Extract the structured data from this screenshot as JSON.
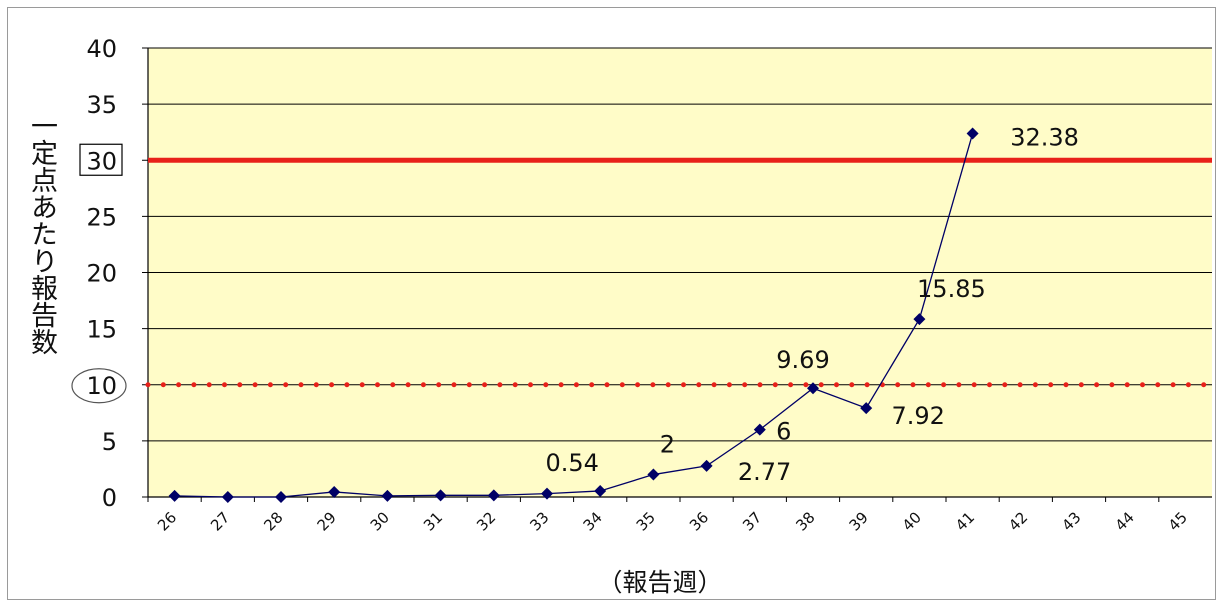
{
  "chart_data": {
    "type": "line",
    "xlabel": "（報告週）",
    "ylabel": "一定点あたり報告数",
    "ylim": [
      0,
      40
    ],
    "yticks": [
      0,
      5,
      10,
      15,
      20,
      25,
      30,
      35,
      40
    ],
    "categories": [
      "26",
      "27",
      "28",
      "29",
      "30",
      "31",
      "32",
      "33",
      "34",
      "35",
      "36",
      "37",
      "38",
      "39",
      "40",
      "41",
      "42",
      "43",
      "44",
      "45"
    ],
    "series": [
      {
        "values": [
          0.1,
          0,
          0,
          0.45,
          0.1,
          0.15,
          0.15,
          0.3,
          0.54,
          2,
          2.77,
          6,
          9.69,
          7.92,
          15.85,
          32.38,
          null,
          null,
          null,
          null
        ],
        "color": "#000066",
        "data_labels": [
          null,
          null,
          null,
          null,
          null,
          null,
          null,
          null,
          "0.54",
          "2",
          "2.77",
          "6",
          "9.69",
          "7.92",
          "15.85",
          "32.38",
          null,
          null,
          null,
          null
        ]
      }
    ],
    "reference_lines": [
      {
        "y": 30,
        "style": "solid",
        "color": "#e8211a",
        "tick_marker": "box"
      },
      {
        "y": 10,
        "style": "dotted",
        "color": "#e8211a",
        "tick_marker": "ellipse"
      }
    ],
    "grid": "horizontal",
    "plot_background": "#fffcc8"
  }
}
